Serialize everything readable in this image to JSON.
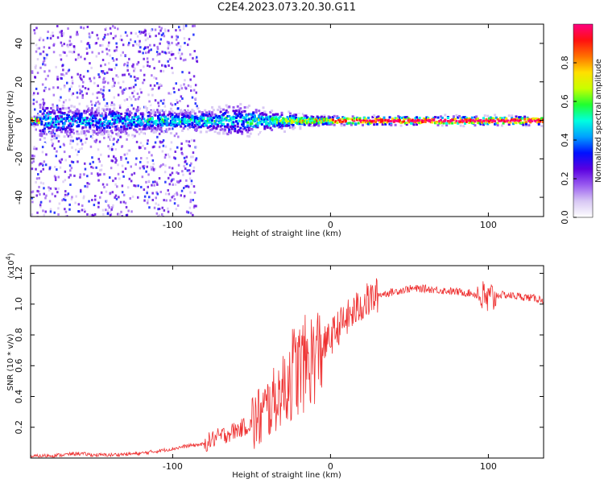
{
  "title": "C2E4.2023.073.20.30.G11",
  "colors": {
    "snr_line": "#ee3030",
    "rainbow": [
      "#ffffff",
      "#d8c8f4",
      "#9a5cf0",
      "#5a00e0",
      "#0010ff",
      "#00a0ff",
      "#00ffe0",
      "#20ff30",
      "#c8ff00",
      "#ffe000",
      "#ff7000",
      "#ff1010",
      "#ff0080"
    ]
  },
  "chart_data": [
    {
      "type": "heatmap",
      "title": "C2E4.2023.073.20.30.G11",
      "xlabel": "Height of straight line (km)",
      "ylabel": "Frequency (Hz)",
      "xlim": [
        -190,
        135
      ],
      "ylim": [
        -50,
        50
      ],
      "xticks": [
        -100,
        0,
        100
      ],
      "yticks": [
        -40,
        -20,
        0,
        20,
        40
      ],
      "colorbar": {
        "label": "Normalized spectral amplitude",
        "range": [
          0.0,
          1.0
        ],
        "ticks": [
          0.0,
          0.2,
          0.4,
          0.6,
          0.8
        ]
      },
      "ridge_profile": [
        {
          "x": -185,
          "spread": 5,
          "peak": 0.55
        },
        {
          "x": -160,
          "spread": 4,
          "peak": 0.5
        },
        {
          "x": -130,
          "spread": 4,
          "peak": 0.5
        },
        {
          "x": -115,
          "spread": 3,
          "peak": 0.6
        },
        {
          "x": -90,
          "spread": 3,
          "peak": 0.55
        },
        {
          "x": -75,
          "spread": 3,
          "peak": 0.6
        },
        {
          "x": -60,
          "spread": 5,
          "peak": 0.55
        },
        {
          "x": -45,
          "spread": 3,
          "peak": 0.65
        },
        {
          "x": -30,
          "spread": 2.5,
          "peak": 0.7
        },
        {
          "x": -15,
          "spread": 1.5,
          "peak": 0.85
        },
        {
          "x": 0,
          "spread": 1.2,
          "peak": 0.95
        },
        {
          "x": 50,
          "spread": 1.2,
          "peak": 1.0
        },
        {
          "x": 135,
          "spread": 1.2,
          "peak": 1.0
        }
      ],
      "scatter_columns": [
        {
          "x_from": -190,
          "x_to": -125,
          "density": 0.85
        },
        {
          "x_from": -125,
          "x_to": -100,
          "density": 0.35
        },
        {
          "x_from": -100,
          "x_to": -85,
          "density": 0.2
        },
        {
          "x_from": -85,
          "x_to": 0,
          "density": 0.0
        }
      ]
    },
    {
      "type": "line",
      "xlabel": "Height of straight line (km)",
      "ylabel": "SNR (10 * v/v)",
      "y_multiplier": "(x10",
      "y_multiplier_exp": "4",
      "y_multiplier_close": ")",
      "xlim": [
        -190,
        135
      ],
      "ylim": [
        0,
        1.25
      ],
      "xticks": [
        -100,
        0,
        100
      ],
      "yticks": [
        0.2,
        0.4,
        0.6,
        0.8,
        1.0,
        1.2
      ],
      "ytick_labels": [
        "0.2",
        "0.4",
        "0.6",
        "0.8",
        "1.0",
        "1.2"
      ],
      "series": [
        {
          "x": [
            -190,
            -170,
            -160,
            -150,
            -140,
            -120,
            -100,
            -90,
            -80,
            -75,
            -70,
            -60,
            -50,
            -45,
            -40,
            -35,
            -30,
            -25,
            -20,
            -15,
            -10,
            -5,
            0,
            5,
            10,
            15,
            20,
            25,
            30,
            40,
            50,
            60,
            70,
            80,
            90,
            95,
            100,
            105,
            110,
            120,
            135
          ],
          "y": [
            0.01,
            0.02,
            0.03,
            0.02,
            0.02,
            0.03,
            0.06,
            0.08,
            0.09,
            0.12,
            0.14,
            0.18,
            0.22,
            0.26,
            0.32,
            0.38,
            0.45,
            0.55,
            0.58,
            0.62,
            0.66,
            0.72,
            0.78,
            0.85,
            0.9,
            0.95,
            1.0,
            1.03,
            1.06,
            1.08,
            1.1,
            1.1,
            1.09,
            1.08,
            1.07,
            1.05,
            1.02,
            1.06,
            1.06,
            1.05,
            1.03
          ]
        }
      ]
    }
  ]
}
